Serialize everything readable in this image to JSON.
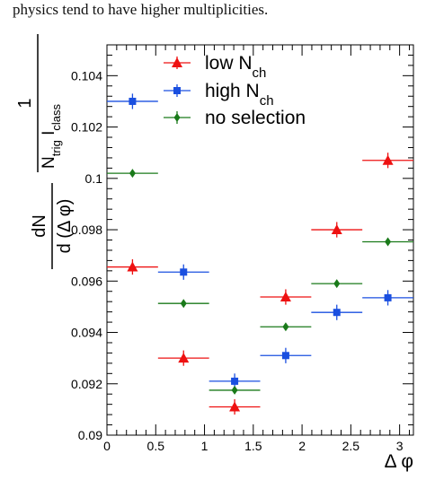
{
  "caption": "physics tend to have higher multiplicities.",
  "chart_data": {
    "type": "scatter",
    "xlabel": "Δ φ",
    "ylabel": {
      "numerator": "dN",
      "denominator": "d (Δ φ)",
      "fraction_numerator": "1",
      "fraction_denominator": "N",
      "fraction_denominator_sub": "trig",
      "fraction_denominator_mid": " I",
      "fraction_denominator_sub2": "class"
    },
    "xlim": [
      0,
      3.14159
    ],
    "ylim": [
      0.09,
      0.1052
    ],
    "x_ticks": [
      {
        "v": 0,
        "label": "0"
      },
      {
        "v": 0.5,
        "label": "0.5"
      },
      {
        "v": 1,
        "label": "1"
      },
      {
        "v": 1.5,
        "label": "1.5"
      },
      {
        "v": 2,
        "label": "2"
      },
      {
        "v": 2.5,
        "label": "2.5"
      },
      {
        "v": 3,
        "label": "3"
      }
    ],
    "y_ticks": [
      {
        "v": 0.09,
        "label": "0.09"
      },
      {
        "v": 0.092,
        "label": "0.092"
      },
      {
        "v": 0.094,
        "label": "0.094"
      },
      {
        "v": 0.096,
        "label": "0.096"
      },
      {
        "v": 0.098,
        "label": "0.098"
      },
      {
        "v": 0.1,
        "label": "0.1"
      },
      {
        "v": 0.102,
        "label": "0.102"
      },
      {
        "v": 0.104,
        "label": "0.104"
      }
    ],
    "bin_width": 0.5236,
    "x": [
      0.2618,
      0.7854,
      1.309,
      1.8326,
      2.3562,
      2.8798
    ],
    "series": [
      {
        "name": "low N",
        "sub": "ch",
        "color": "#ee1111",
        "marker": "triangle",
        "values": [
          0.09655,
          0.093,
          0.0911,
          0.09538,
          0.098,
          0.1007
        ],
        "errors": [
          0.0003,
          0.0003,
          0.0003,
          0.0003,
          0.0003,
          0.0003
        ]
      },
      {
        "name": "high N",
        "sub": "ch",
        "color": "#1a4fe0",
        "marker": "square",
        "values": [
          0.103,
          0.09635,
          0.0921,
          0.0931,
          0.09478,
          0.09535
        ],
        "errors": [
          0.0003,
          0.0003,
          0.0003,
          0.0003,
          0.0003,
          0.0003
        ]
      },
      {
        "name": "no selection",
        "sub": "",
        "color": "#1a7a1a",
        "marker": "diamond",
        "values": [
          0.1002,
          0.09513,
          0.09175,
          0.09422,
          0.0959,
          0.09753
        ],
        "errors": [
          0.00012,
          0.00012,
          0.00012,
          0.00012,
          0.00012,
          0.00012
        ]
      }
    ],
    "legend_position": "top-center"
  }
}
